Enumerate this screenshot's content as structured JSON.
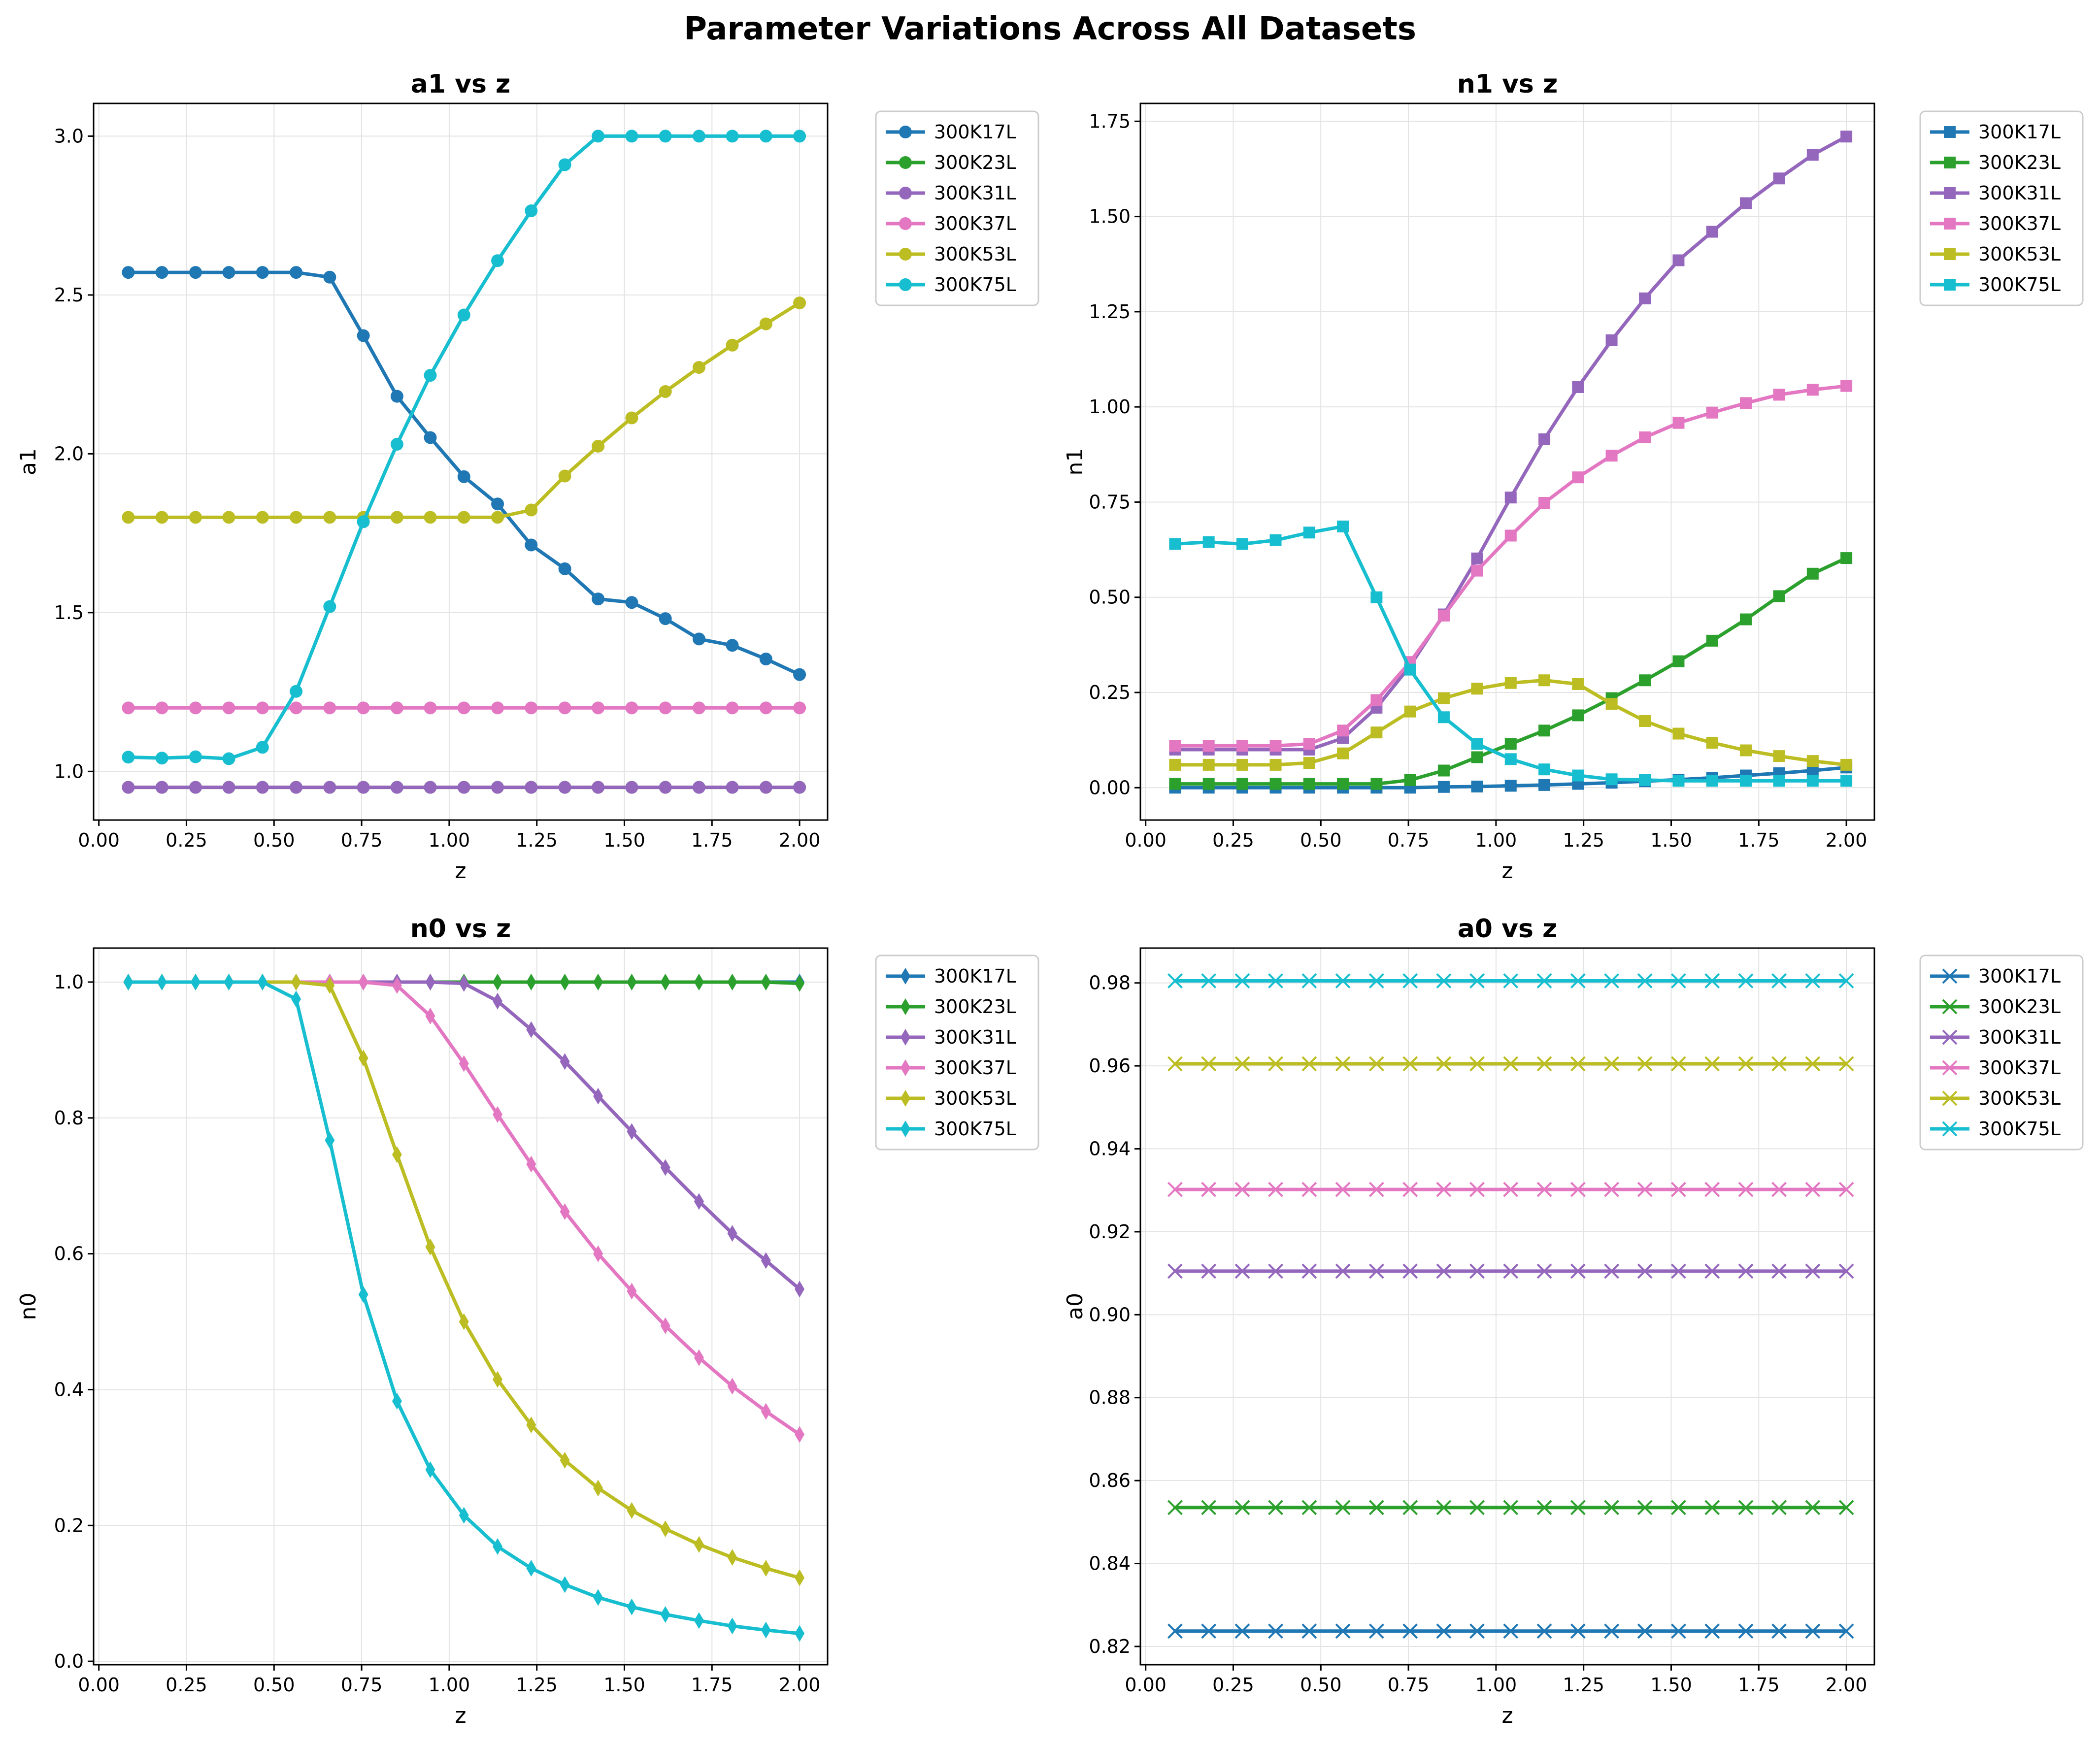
{
  "figure": {
    "title": "Parameter Variations Across All Datasets"
  },
  "colors": {
    "300K17L": "#1f77b4",
    "300K23L": "#2ca02c",
    "300K31L": "#9467bd",
    "300K37L": "#e377c2",
    "300K53L": "#bcbd22",
    "300K75L": "#17becf"
  },
  "chart_data": [
    {
      "type": "line",
      "title": "a1 vs z",
      "xlabel": "z",
      "ylabel": "a1",
      "marker": "circle",
      "legend": "outside-right-top",
      "xlim": [
        -0.015,
        2.08
      ],
      "ylim": [
        0.847,
        3.103
      ],
      "grid": true,
      "xticks": [
        "0.00",
        "0.25",
        "0.50",
        "0.75",
        "1.00",
        "1.25",
        "1.50",
        "1.75",
        "2.00"
      ],
      "yticks": [
        "1.0",
        "1.5",
        "2.0",
        "2.5",
        "3.0"
      ],
      "x": [
        0.084,
        0.18,
        0.276,
        0.371,
        0.467,
        0.563,
        0.659,
        0.755,
        0.851,
        0.946,
        1.042,
        1.138,
        1.234,
        1.33,
        1.425,
        1.521,
        1.617,
        1.713,
        1.808,
        1.904,
        2.0
      ],
      "series": [
        {
          "name": "300K17L",
          "values": [
            2.571,
            2.571,
            2.571,
            2.571,
            2.571,
            2.571,
            2.556,
            2.372,
            2.181,
            2.051,
            1.928,
            1.842,
            1.713,
            1.638,
            1.543,
            1.532,
            1.481,
            1.417,
            1.397,
            1.354,
            1.305
          ]
        },
        {
          "name": "300K23L",
          "values": [
            0.95,
            0.95,
            0.95,
            0.95,
            0.95,
            0.95,
            0.95,
            0.95,
            0.95,
            0.95,
            0.95,
            0.95,
            0.95,
            0.95,
            0.95,
            0.95,
            0.95,
            0.95,
            0.95,
            0.95,
            0.95
          ]
        },
        {
          "name": "300K31L",
          "values": [
            0.95,
            0.95,
            0.95,
            0.95,
            0.95,
            0.95,
            0.95,
            0.95,
            0.95,
            0.95,
            0.95,
            0.95,
            0.95,
            0.95,
            0.95,
            0.95,
            0.95,
            0.95,
            0.95,
            0.95,
            0.95
          ]
        },
        {
          "name": "300K37L",
          "values": [
            1.2,
            1.2,
            1.2,
            1.2,
            1.2,
            1.2,
            1.2,
            1.2,
            1.2,
            1.2,
            1.2,
            1.2,
            1.2,
            1.2,
            1.2,
            1.2,
            1.2,
            1.2,
            1.2,
            1.2,
            1.2
          ]
        },
        {
          "name": "300K53L",
          "values": [
            1.8,
            1.8,
            1.8,
            1.8,
            1.8,
            1.8,
            1.8,
            1.8,
            1.8,
            1.8,
            1.8,
            1.8,
            1.823,
            1.93,
            2.024,
            2.113,
            2.196,
            2.272,
            2.342,
            2.409,
            2.475
          ]
        },
        {
          "name": "300K75L",
          "values": [
            1.045,
            1.042,
            1.046,
            1.04,
            1.076,
            1.252,
            1.519,
            1.786,
            2.03,
            2.247,
            2.437,
            2.608,
            2.765,
            2.91,
            3.0,
            3.0,
            3.0,
            3.0,
            3.0,
            3.0,
            3.0
          ]
        }
      ]
    },
    {
      "type": "line",
      "title": "n1 vs z",
      "xlabel": "z",
      "ylabel": "n1",
      "marker": "square",
      "legend": "outside-right-top",
      "xlim": [
        -0.015,
        2.08
      ],
      "ylim": [
        -0.085,
        1.797
      ],
      "grid": true,
      "xticks": [
        "0.00",
        "0.25",
        "0.50",
        "0.75",
        "1.00",
        "1.25",
        "1.50",
        "1.75",
        "2.00"
      ],
      "yticks": [
        "0.00",
        "0.25",
        "0.50",
        "0.75",
        "1.00",
        "1.25",
        "1.50",
        "1.75"
      ],
      "x": [
        0.084,
        0.18,
        0.276,
        0.371,
        0.467,
        0.563,
        0.659,
        0.755,
        0.851,
        0.946,
        1.042,
        1.138,
        1.234,
        1.33,
        1.425,
        1.521,
        1.617,
        1.713,
        1.808,
        1.904,
        2.0
      ],
      "series": [
        {
          "name": "300K17L",
          "values": [
            0.0,
            0.0,
            0.0,
            0.0,
            0.0,
            0.0,
            0.0,
            0.0,
            0.002,
            0.003,
            0.005,
            0.007,
            0.01,
            0.013,
            0.017,
            0.021,
            0.026,
            0.032,
            0.038,
            0.045,
            0.053
          ]
        },
        {
          "name": "300K23L",
          "values": [
            0.01,
            0.01,
            0.01,
            0.01,
            0.01,
            0.01,
            0.01,
            0.02,
            0.045,
            0.08,
            0.115,
            0.15,
            0.19,
            0.235,
            0.282,
            0.332,
            0.386,
            0.442,
            0.503,
            0.562,
            0.603
          ]
        },
        {
          "name": "300K31L",
          "values": [
            0.1,
            0.1,
            0.1,
            0.1,
            0.1,
            0.13,
            0.21,
            0.32,
            0.455,
            0.602,
            0.762,
            0.915,
            1.052,
            1.175,
            1.285,
            1.385,
            1.46,
            1.535,
            1.6,
            1.662,
            1.71
          ]
        },
        {
          "name": "300K37L",
          "values": [
            0.11,
            0.11,
            0.11,
            0.11,
            0.115,
            0.15,
            0.23,
            0.33,
            0.452,
            0.57,
            0.662,
            0.748,
            0.815,
            0.872,
            0.92,
            0.958,
            0.985,
            1.01,
            1.032,
            1.045,
            1.055
          ]
        },
        {
          "name": "300K53L",
          "values": [
            0.06,
            0.06,
            0.06,
            0.06,
            0.065,
            0.09,
            0.145,
            0.2,
            0.235,
            0.26,
            0.275,
            0.282,
            0.272,
            0.22,
            0.175,
            0.142,
            0.118,
            0.098,
            0.083,
            0.07,
            0.06
          ]
        },
        {
          "name": "300K75L",
          "values": [
            0.64,
            0.645,
            0.64,
            0.65,
            0.67,
            0.686,
            0.5,
            0.31,
            0.185,
            0.115,
            0.075,
            0.048,
            0.032,
            0.022,
            0.02,
            0.018,
            0.018,
            0.018,
            0.018,
            0.018,
            0.018
          ]
        }
      ]
    },
    {
      "type": "line",
      "title": "n0 vs z",
      "xlabel": "z",
      "ylabel": "n0",
      "marker": "thin-diamond",
      "legend": "outside-right-top",
      "xlim": [
        -0.015,
        2.08
      ],
      "ylim": [
        -0.005,
        1.05
      ],
      "grid": true,
      "xticks": [
        "0.00",
        "0.25",
        "0.50",
        "0.75",
        "1.00",
        "1.25",
        "1.50",
        "1.75",
        "2.00"
      ],
      "yticks": [
        "0.0",
        "0.2",
        "0.4",
        "0.6",
        "0.8",
        "1.0"
      ],
      "x": [
        0.084,
        0.18,
        0.276,
        0.371,
        0.467,
        0.563,
        0.659,
        0.755,
        0.851,
        0.946,
        1.042,
        1.138,
        1.234,
        1.33,
        1.425,
        1.521,
        1.617,
        1.713,
        1.808,
        1.904,
        2.0
      ],
      "series": [
        {
          "name": "300K17L",
          "values": [
            1.0,
            1.0,
            1.0,
            1.0,
            1.0,
            1.0,
            1.0,
            1.0,
            1.0,
            1.0,
            1.0,
            1.0,
            1.0,
            1.0,
            1.0,
            1.0,
            1.0,
            1.0,
            1.0,
            1.0,
            1.0
          ]
        },
        {
          "name": "300K23L",
          "values": [
            1.0,
            1.0,
            1.0,
            1.0,
            1.0,
            1.0,
            1.0,
            1.0,
            1.0,
            1.0,
            1.0,
            1.0,
            1.0,
            1.0,
            1.0,
            1.0,
            1.0,
            1.0,
            1.0,
            1.0,
            0.998
          ]
        },
        {
          "name": "300K31L",
          "values": [
            1.0,
            1.0,
            1.0,
            1.0,
            1.0,
            1.0,
            1.0,
            1.0,
            1.0,
            1.0,
            0.998,
            0.972,
            0.93,
            0.883,
            0.832,
            0.78,
            0.727,
            0.677,
            0.63,
            0.59,
            0.548
          ]
        },
        {
          "name": "300K37L",
          "values": [
            1.0,
            1.0,
            1.0,
            1.0,
            1.0,
            1.0,
            1.0,
            1.0,
            0.995,
            0.95,
            0.88,
            0.805,
            0.732,
            0.662,
            0.6,
            0.545,
            0.494,
            0.447,
            0.405,
            0.368,
            0.334
          ]
        },
        {
          "name": "300K53L",
          "values": [
            1.0,
            1.0,
            1.0,
            1.0,
            1.0,
            1.0,
            0.995,
            0.888,
            0.746,
            0.61,
            0.5,
            0.415,
            0.348,
            0.296,
            0.255,
            0.222,
            0.195,
            0.172,
            0.153,
            0.137,
            0.123
          ]
        },
        {
          "name": "300K75L",
          "values": [
            1.0,
            1.0,
            1.0,
            1.0,
            1.0,
            0.975,
            0.767,
            0.54,
            0.383,
            0.282,
            0.215,
            0.169,
            0.137,
            0.113,
            0.094,
            0.08,
            0.069,
            0.06,
            0.052,
            0.046,
            0.041
          ]
        }
      ]
    },
    {
      "type": "line",
      "title": "a0 vs z",
      "xlabel": "z",
      "ylabel": "a0",
      "marker": "x",
      "legend": "outside-right-top",
      "xlim": [
        -0.015,
        2.08
      ],
      "ylim": [
        0.8156,
        0.9884
      ],
      "grid": true,
      "xticks": [
        "0.00",
        "0.25",
        "0.50",
        "0.75",
        "1.00",
        "1.25",
        "1.50",
        "1.75",
        "2.00"
      ],
      "yticks": [
        "0.82",
        "0.84",
        "0.86",
        "0.88",
        "0.90",
        "0.92",
        "0.94",
        "0.96",
        "0.98"
      ],
      "x": [
        0.084,
        0.18,
        0.276,
        0.371,
        0.467,
        0.563,
        0.659,
        0.755,
        0.851,
        0.946,
        1.042,
        1.138,
        1.234,
        1.33,
        1.425,
        1.521,
        1.617,
        1.713,
        1.808,
        1.904,
        2.0
      ],
      "series": [
        {
          "name": "300K17L",
          "values": [
            0.8237,
            0.8237,
            0.8237,
            0.8237,
            0.8237,
            0.8237,
            0.8237,
            0.8237,
            0.8237,
            0.8237,
            0.8237,
            0.8237,
            0.8237,
            0.8237,
            0.8237,
            0.8237,
            0.8237,
            0.8237,
            0.8237,
            0.8237,
            0.8237
          ]
        },
        {
          "name": "300K23L",
          "values": [
            0.8535,
            0.8535,
            0.8535,
            0.8535,
            0.8535,
            0.8535,
            0.8535,
            0.8535,
            0.8535,
            0.8535,
            0.8535,
            0.8535,
            0.8535,
            0.8535,
            0.8535,
            0.8535,
            0.8535,
            0.8535,
            0.8535,
            0.8535,
            0.8535
          ]
        },
        {
          "name": "300K31L",
          "values": [
            0.9105,
            0.9105,
            0.9105,
            0.9105,
            0.9105,
            0.9105,
            0.9105,
            0.9105,
            0.9105,
            0.9105,
            0.9105,
            0.9105,
            0.9105,
            0.9105,
            0.9105,
            0.9105,
            0.9105,
            0.9105,
            0.9105,
            0.9105,
            0.9105
          ]
        },
        {
          "name": "300K37L",
          "values": [
            0.9302,
            0.9302,
            0.9302,
            0.9302,
            0.9302,
            0.9302,
            0.9302,
            0.9302,
            0.9302,
            0.9302,
            0.9302,
            0.9302,
            0.9302,
            0.9302,
            0.9302,
            0.9302,
            0.9302,
            0.9302,
            0.9302,
            0.9302,
            0.9302
          ]
        },
        {
          "name": "300K53L",
          "values": [
            0.9605,
            0.9605,
            0.9605,
            0.9605,
            0.9605,
            0.9605,
            0.9605,
            0.9605,
            0.9605,
            0.9605,
            0.9605,
            0.9605,
            0.9605,
            0.9605,
            0.9605,
            0.9605,
            0.9605,
            0.9605,
            0.9605,
            0.9605,
            0.9605
          ]
        },
        {
          "name": "300K75L",
          "values": [
            0.9805,
            0.9805,
            0.9805,
            0.9805,
            0.9805,
            0.9805,
            0.9805,
            0.9805,
            0.9805,
            0.9805,
            0.9805,
            0.9805,
            0.9805,
            0.9805,
            0.9805,
            0.9805,
            0.9805,
            0.9805,
            0.9805,
            0.9805,
            0.9805
          ]
        }
      ]
    }
  ]
}
